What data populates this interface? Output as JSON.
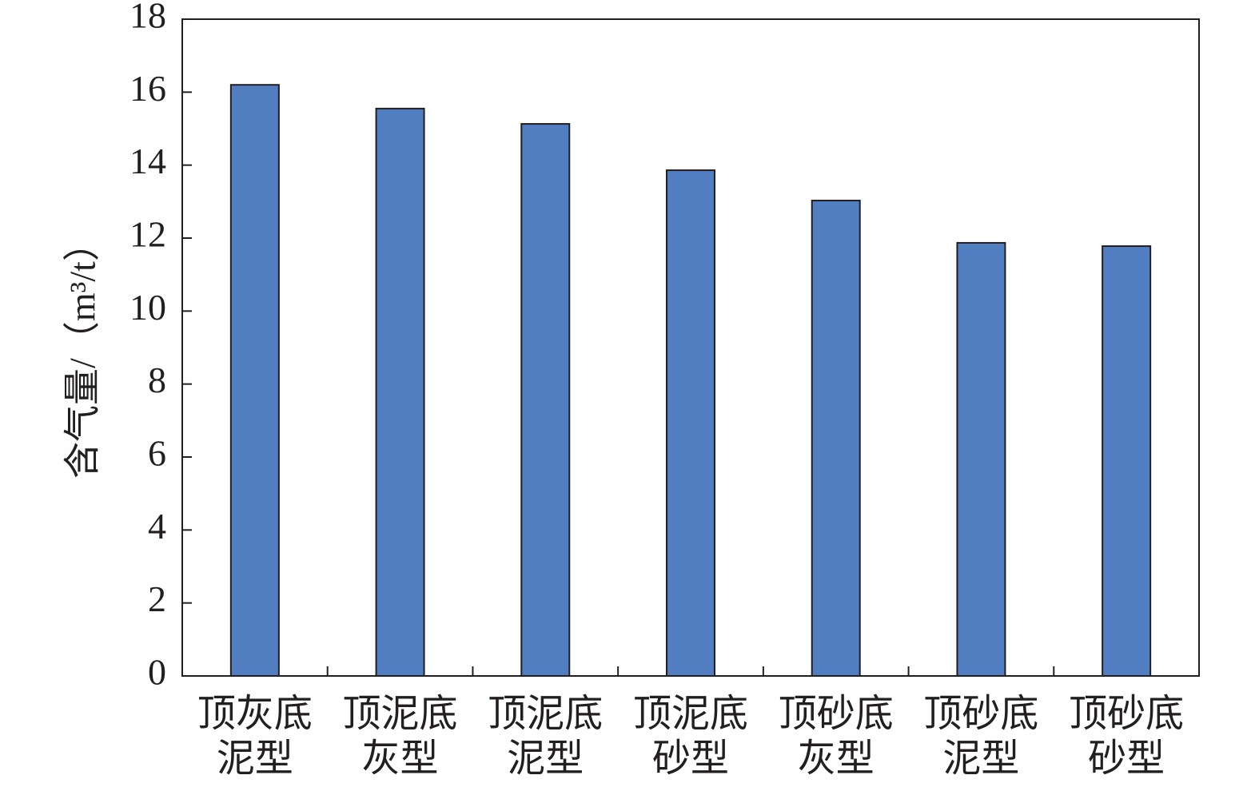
{
  "chart_data": {
    "type": "bar",
    "y_label": "含气量/（m³/t）",
    "categories": [
      "顶灰底泥型",
      "顶泥底灰型",
      "顶泥底泥型",
      "顶泥底砂型",
      "顶砂底灰型",
      "顶砂底泥型",
      "顶砂底砂型"
    ],
    "values": [
      16.2,
      15.55,
      15.13,
      13.86,
      13.03,
      11.87,
      11.78
    ],
    "color": "#517dc1",
    "ylim": [
      0,
      18
    ],
    "yticks": [
      0,
      2,
      4,
      6,
      8,
      10,
      12,
      14,
      16,
      18
    ],
    "grid": false
  }
}
